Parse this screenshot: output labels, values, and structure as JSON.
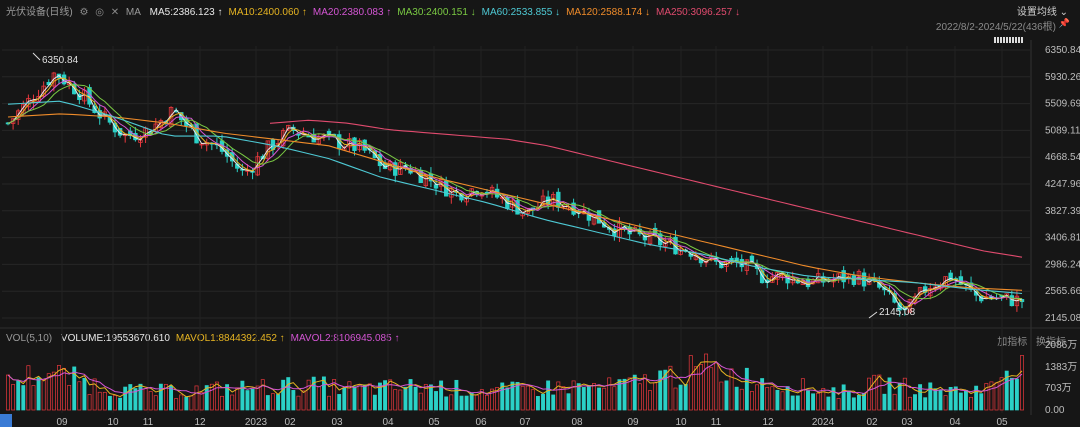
{
  "header": {
    "symbol": "光伏设备(日线)",
    "icons": [
      "settings-icon",
      "chart-type-icon",
      "close-icon"
    ],
    "ma_label": "MA",
    "ma_items": [
      {
        "label": "MA5:2386.123",
        "arrow": "↑",
        "color": "#e8e8e8"
      },
      {
        "label": "MA10:2400.060",
        "arrow": "↑",
        "color": "#e6b422"
      },
      {
        "label": "MA20:2380.083",
        "arrow": "↑",
        "color": "#d455d4"
      },
      {
        "label": "MA30:2400.151",
        "arrow": "↓",
        "color": "#7ac943"
      },
      {
        "label": "MA60:2533.855",
        "arrow": "↓",
        "color": "#4ec9d4"
      },
      {
        "label": "MA120:2588.174",
        "arrow": "↓",
        "color": "#f08c2a"
      },
      {
        "label": "MA250:3096.257",
        "arrow": "↓",
        "color": "#e04b6e"
      }
    ],
    "settings_label": "设置均线",
    "date_range": "2022/8/2-2024/5/22(436根)"
  },
  "volume_header": {
    "vol_label": "VOL(5,10)",
    "items": [
      {
        "label": "VOLUME:19553670.610",
        "arrow": "",
        "color": "#e8e8e8"
      },
      {
        "label": "MAVOL1:8844392.452",
        "arrow": "↑",
        "color": "#e6b422"
      },
      {
        "label": "MAVOL2:8106945.085",
        "arrow": "↑",
        "color": "#d455d4"
      }
    ],
    "buttons": [
      "加指标",
      "换指标"
    ]
  },
  "colors": {
    "up": "#e8383d",
    "down": "#2bd1c7",
    "bg": "#161616",
    "grid": "#2a2a2a"
  },
  "chart_data": {
    "type": "candlestick",
    "y_ticks": [
      "6350.84",
      "5930.26",
      "5509.69",
      "5089.11",
      "4668.54",
      "4247.96",
      "3827.39",
      "3406.81",
      "2986.24",
      "2565.66",
      "2145.08"
    ],
    "ylim": [
      2145.08,
      6350.84
    ],
    "high_label": "6350.84",
    "low_label": "2145.08",
    "x_ticks": [
      "09",
      "10",
      "11",
      "12",
      "2023",
      "02",
      "03",
      "04",
      "05",
      "06",
      "07",
      "08",
      "09",
      "10",
      "11",
      "12",
      "2024",
      "02",
      "03",
      "04",
      "05"
    ],
    "series_anchor_closes": [
      5200,
      5600,
      6000,
      5700,
      5300,
      5000,
      5100,
      5400,
      5000,
      4800,
      4400,
      4800,
      5100,
      5000,
      4900,
      4800,
      4500,
      4500,
      4300,
      4100,
      4200,
      4000,
      3800,
      4000,
      3900,
      3700,
      3500,
      3400,
      3300,
      3200,
      3000,
      3000,
      2800,
      2800,
      2700,
      2750,
      2800,
      2600,
      2200,
      2650,
      2800,
      2500,
      2450,
      2420
    ],
    "ma_lines": [
      {
        "name": "MA250",
        "anchors": [
          5200,
          5250,
          5200,
          5100,
          5050,
          5000,
          4950,
          4850,
          4700,
          4550,
          4400,
          4250,
          4100,
          3950,
          3800,
          3650,
          3500,
          3350,
          3200,
          3100
        ]
      },
      {
        "name": "MA120",
        "anchors": [
          5300,
          5350,
          5300,
          5200,
          5050,
          4950,
          4850,
          4600,
          4350,
          4150,
          3950,
          3750,
          3550,
          3350,
          3150,
          2950,
          2800,
          2700,
          2620,
          2580
        ]
      },
      {
        "name": "MA60",
        "anchors": [
          5500,
          5550,
          5300,
          5000,
          5000,
          4850,
          4650,
          4350,
          4150,
          3950,
          3700,
          3500,
          3300,
          3150,
          2950,
          2800,
          2750,
          2700,
          2600,
          2530
        ]
      }
    ],
    "volume": {
      "y_ticks": [
        "2086万",
        "1383万",
        "703万",
        "0.00"
      ],
      "ylim": [
        0,
        2086
      ],
      "anchor_values": [
        900,
        1300,
        1000,
        700,
        600,
        650,
        700,
        750,
        800,
        800,
        700,
        750,
        800,
        700,
        650,
        700,
        800,
        750,
        900,
        1200,
        1400,
        1100,
        900,
        700,
        600,
        900,
        700,
        650,
        700,
        1955
      ]
    }
  }
}
